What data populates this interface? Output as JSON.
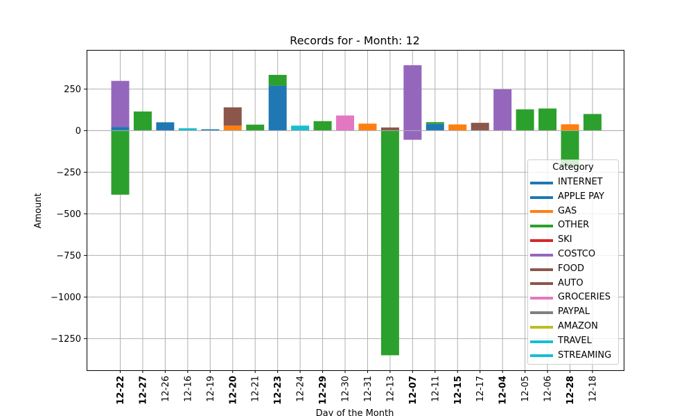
{
  "chart_data": {
    "type": "bar",
    "stacked": true,
    "title": "Records for  - Month: 12",
    "xlabel": "Day of the Month",
    "ylabel": "Amount",
    "ylim": [
      -1440,
      485
    ],
    "yticks": [
      250,
      0,
      -250,
      -500,
      -750,
      -1000,
      -1250
    ],
    "grid": true,
    "legend_position": "lower-right",
    "legend_title": "Category",
    "categories": [
      "12-22",
      "12-27",
      "12-26",
      "12-16",
      "12-19",
      "12-20",
      "12-21",
      "12-23",
      "12-24",
      "12-29",
      "12-30",
      "12-31",
      "12-13",
      "12-07",
      "12-11",
      "12-15",
      "12-17",
      "12-04",
      "12-05",
      "12-06",
      "12-28",
      "12-18"
    ],
    "bold_categories": [
      "12-22",
      "12-27",
      "12-20",
      "12-23",
      "12-29",
      "12-15",
      "12-07",
      "12-04",
      "12-28"
    ],
    "series": [
      {
        "name": "INTERNET",
        "color": "#1f77b4",
        "values": [
          22,
          0,
          0,
          0,
          0,
          0,
          0,
          0,
          0,
          0,
          0,
          0,
          0,
          0,
          0,
          0,
          0,
          0,
          0,
          0,
          0,
          0
        ]
      },
      {
        "name": "APPLE PAY",
        "color": "#1f77b4",
        "values": [
          0,
          0,
          50,
          0,
          8,
          0,
          0,
          270,
          0,
          0,
          0,
          0,
          0,
          0,
          40,
          0,
          0,
          0,
          0,
          0,
          0,
          0
        ]
      },
      {
        "name": "GAS",
        "color": "#ff7f0e",
        "values": [
          0,
          0,
          0,
          0,
          0,
          30,
          0,
          0,
          0,
          0,
          0,
          42,
          0,
          0,
          0,
          37,
          0,
          0,
          0,
          0,
          38,
          0
        ]
      },
      {
        "name": "OTHER",
        "color": "#2ca02c",
        "values": [
          -385,
          115,
          0,
          0,
          0,
          0,
          36,
          65,
          0,
          57,
          0,
          0,
          -1350,
          0,
          11,
          0,
          0,
          0,
          128,
          133,
          -220,
          100
        ]
      },
      {
        "name": "SKI",
        "color": "#d62728",
        "values": [
          0,
          0,
          0,
          0,
          0,
          0,
          0,
          0,
          0,
          0,
          0,
          0,
          0,
          0,
          0,
          0,
          0,
          0,
          0,
          0,
          0,
          0
        ]
      },
      {
        "name": "COSTCO",
        "color": "#9467bd",
        "values": [
          277,
          0,
          0,
          0,
          0,
          0,
          0,
          0,
          0,
          0,
          0,
          0,
          0,
          393,
          0,
          0,
          0,
          248,
          0,
          0,
          0,
          0
        ]
      },
      {
        "name": "FOOD",
        "color": "#8c564b",
        "values": [
          0,
          0,
          0,
          0,
          0,
          110,
          0,
          0,
          0,
          0,
          0,
          0,
          0,
          0,
          0,
          0,
          0,
          0,
          0,
          0,
          0,
          0
        ]
      },
      {
        "name": "AUTO",
        "color": "#8c564b",
        "values": [
          0,
          0,
          0,
          0,
          0,
          0,
          0,
          0,
          0,
          0,
          0,
          0,
          19,
          0,
          0,
          0,
          47,
          0,
          0,
          0,
          0,
          0
        ]
      },
      {
        "name": "GROCERIES",
        "color": "#e377c2",
        "values": [
          0,
          0,
          0,
          0,
          0,
          0,
          0,
          0,
          0,
          0,
          91,
          0,
          0,
          0,
          0,
          0,
          0,
          0,
          0,
          0,
          0,
          0
        ]
      },
      {
        "name": "PAYPAL",
        "color": "#7f7f7f",
        "values": [
          0,
          0,
          0,
          0,
          0,
          0,
          0,
          0,
          0,
          0,
          0,
          0,
          0,
          0,
          0,
          0,
          0,
          0,
          0,
          0,
          0,
          0
        ]
      },
      {
        "name": "AMAZON",
        "color": "#bcbd22",
        "values": [
          0,
          0,
          0,
          0,
          0,
          0,
          0,
          0,
          0,
          0,
          0,
          0,
          0,
          0,
          0,
          0,
          0,
          0,
          0,
          0,
          0,
          0
        ]
      },
      {
        "name": "TRAVEL",
        "color": "#17becf",
        "values": [
          0,
          0,
          0,
          14,
          0,
          0,
          0,
          0,
          30,
          0,
          0,
          0,
          0,
          0,
          0,
          0,
          0,
          0,
          0,
          0,
          0,
          0
        ]
      },
      {
        "name": "STREAMING",
        "color": "#17becf",
        "values": [
          0,
          0,
          0,
          0,
          0,
          0,
          0,
          0,
          0,
          0,
          0,
          0,
          0,
          0,
          0,
          0,
          0,
          0,
          0,
          0,
          0,
          0
        ]
      }
    ],
    "extra_segments": [
      {
        "category": "12-07",
        "series": "COSTCO",
        "color": "#9467bd",
        "from": -55,
        "to": 0
      }
    ]
  }
}
